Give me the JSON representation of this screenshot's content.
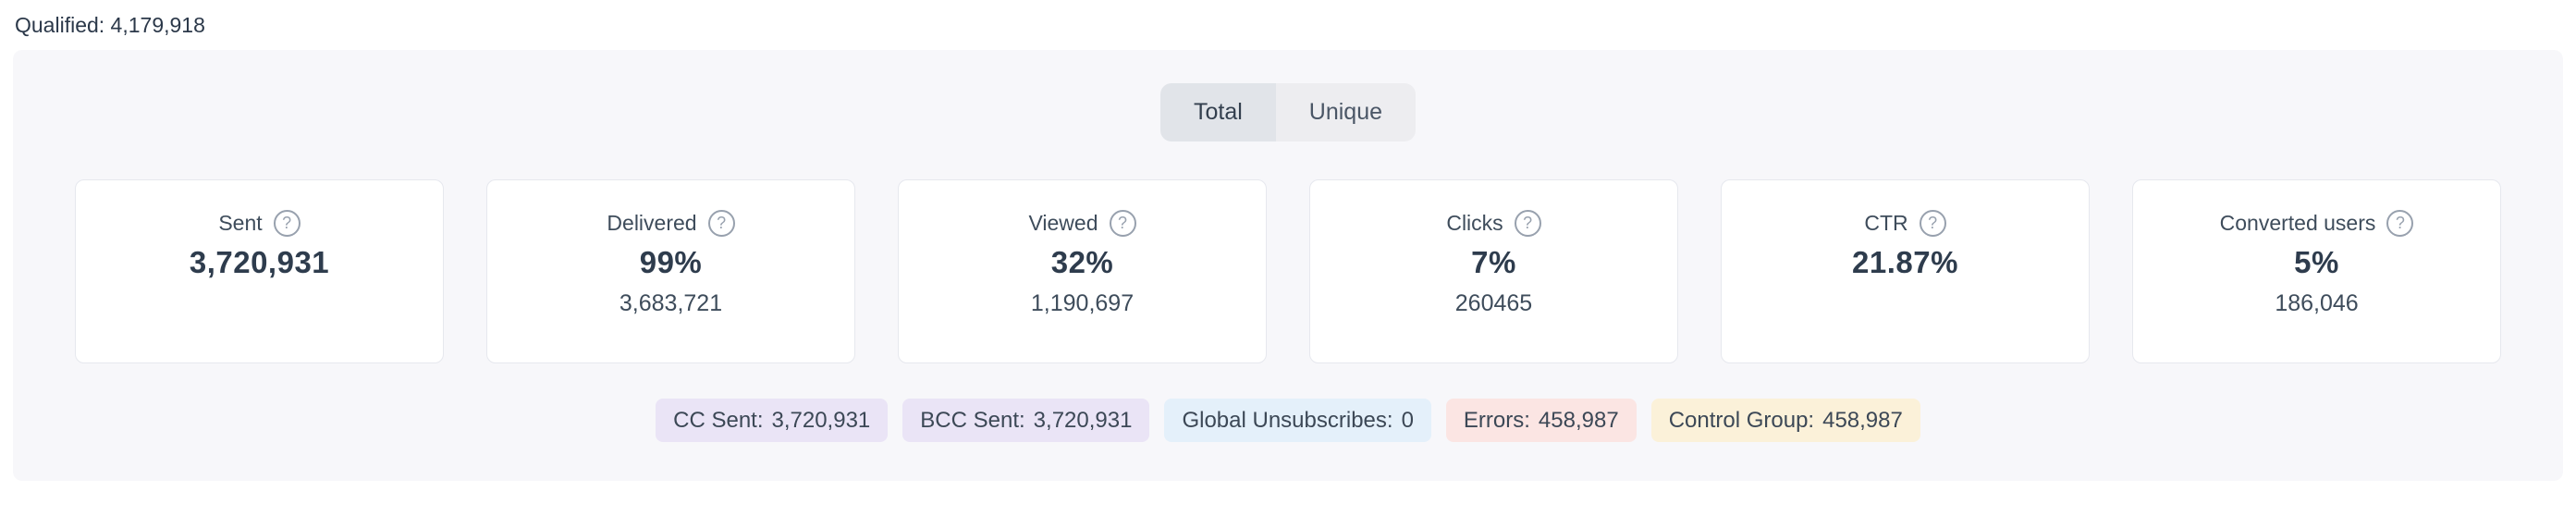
{
  "header": {
    "qualified": "Qualified: 4,179,918"
  },
  "toggle": {
    "total_label": "Total",
    "unique_label": "Unique",
    "selected": "Total"
  },
  "stats": [
    {
      "label": "Sent",
      "primary": "3,720,931",
      "secondary": ""
    },
    {
      "label": "Delivered",
      "primary": "99%",
      "secondary": "3,683,721"
    },
    {
      "label": "Viewed",
      "primary": "32%",
      "secondary": "1,190,697"
    },
    {
      "label": "Clicks",
      "primary": "7%",
      "secondary": "260465"
    },
    {
      "label": "CTR",
      "primary": "21.87%",
      "secondary": ""
    },
    {
      "label": "Converted users",
      "primary": "5%",
      "secondary": "186,046"
    }
  ],
  "help_icon": {
    "glyph": "?"
  },
  "badges": [
    {
      "label": "CC Sent:",
      "value": "3,720,931",
      "bg": "#eae4f6"
    },
    {
      "label": "BCC Sent:",
      "value": "3,720,931",
      "bg": "#eae4f6"
    },
    {
      "label": "Global Unsubscribes:",
      "value": "0",
      "bg": "#e4f0fa"
    },
    {
      "label": "Errors:",
      "value": "458,987",
      "bg": "#fbe5e3"
    },
    {
      "label": "Control Group:",
      "value": "458,987",
      "bg": "#fbf1d9"
    }
  ],
  "colors": {
    "panel_bg": "#f7f7fa",
    "card_border": "#e6e8ee",
    "toggle_selected_bg": "#e1e4e9",
    "toggle_unselected_bg": "#ededf0"
  }
}
